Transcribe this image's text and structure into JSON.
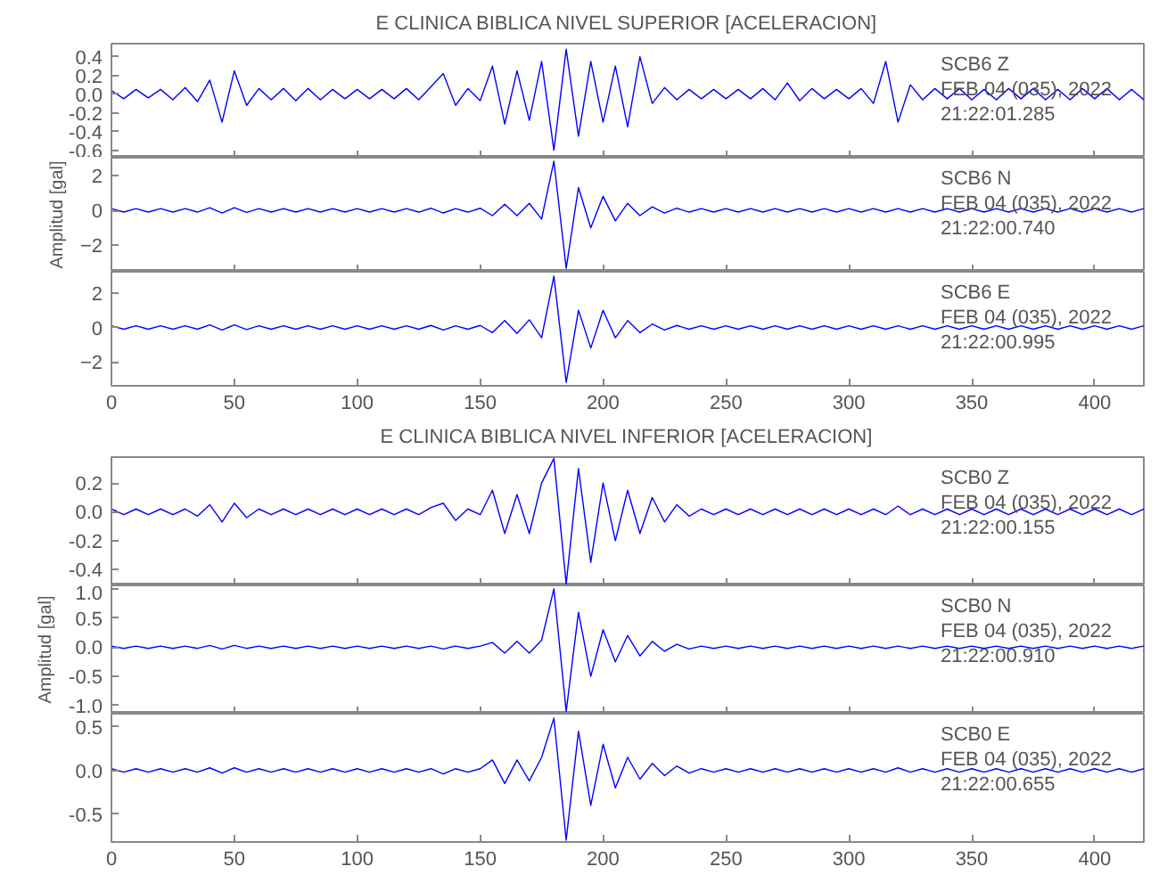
{
  "chart_data": [
    {
      "type": "line",
      "title": "E CLINICA BIBLICA NIVEL SUPERIOR [ACELERACION]",
      "annotations": [
        "SCB6   Z",
        "FEB 04 (035), 2022",
        "21:22:01.285"
      ],
      "tick_labels": "y",
      "x": [
        0,
        5,
        10,
        15,
        20,
        25,
        30,
        35,
        40,
        45,
        50,
        55,
        60,
        65,
        70,
        75,
        80,
        85,
        90,
        95,
        100,
        105,
        110,
        115,
        120,
        125,
        130,
        135,
        140,
        145,
        150,
        155,
        160,
        165,
        170,
        175,
        180,
        185,
        190,
        195,
        200,
        205,
        210,
        215,
        220,
        225,
        230,
        235,
        240,
        245,
        250,
        255,
        260,
        265,
        270,
        275,
        280,
        285,
        290,
        295,
        300,
        305,
        310,
        315,
        320,
        325,
        330,
        335,
        340,
        345,
        350,
        355,
        360,
        365,
        370,
        375,
        380,
        385,
        390,
        395,
        400,
        405,
        410,
        415,
        420
      ],
      "series": [
        {
          "color": "#0000ff",
          "values": [
            0.04,
            -0.05,
            0.05,
            -0.04,
            0.05,
            -0.06,
            0.07,
            -0.08,
            0.15,
            -0.3,
            0.25,
            -0.12,
            0.06,
            -0.06,
            0.06,
            -0.07,
            0.06,
            -0.06,
            0.05,
            -0.05,
            0.05,
            -0.05,
            0.05,
            -0.05,
            0.06,
            -0.06,
            0.08,
            0.22,
            -0.12,
            0.06,
            -0.07,
            0.3,
            -0.32,
            0.25,
            -0.28,
            0.35,
            -0.6,
            0.48,
            -0.45,
            0.35,
            -0.3,
            0.3,
            -0.35,
            0.4,
            -0.1,
            0.07,
            -0.06,
            0.05,
            -0.05,
            0.05,
            -0.05,
            0.05,
            -0.05,
            0.06,
            -0.06,
            0.12,
            -0.07,
            0.06,
            -0.05,
            0.05,
            -0.05,
            0.06,
            -0.1,
            0.35,
            -0.3,
            0.1,
            -0.06,
            0.06,
            -0.05,
            0.06,
            -0.06,
            0.05,
            -0.06,
            0.06,
            -0.05,
            0.06,
            -0.06,
            0.05,
            -0.06,
            0.06,
            -0.05,
            0.06,
            -0.06,
            0.05,
            -0.06
          ]
        }
      ],
      "xlim": [
        0,
        420
      ],
      "ylim": [
        -0.68,
        0.54
      ],
      "xticks": [
        0,
        50,
        100,
        150,
        200,
        250,
        300,
        350,
        400
      ],
      "yticks": [
        {
          "value": -0.6,
          "label": "-0.6"
        },
        {
          "value": -0.4,
          "label": "-0.4"
        },
        {
          "value": -0.2,
          "label": "-0.2"
        },
        {
          "value": 0,
          "label": "0.0"
        },
        {
          "value": 0.2,
          "label": "0.2"
        },
        {
          "value": 0.4,
          "label": "0.4"
        }
      ]
    },
    {
      "type": "line",
      "ylabel": "Amplitud [gal]",
      "annotations": [
        "SCB6   N",
        "FEB 04 (035), 2022",
        "21:22:00.740"
      ],
      "tick_labels": "y",
      "x": [
        0,
        5,
        10,
        15,
        20,
        25,
        30,
        35,
        40,
        45,
        50,
        55,
        60,
        65,
        70,
        75,
        80,
        85,
        90,
        95,
        100,
        105,
        110,
        115,
        120,
        125,
        130,
        135,
        140,
        145,
        150,
        155,
        160,
        165,
        170,
        175,
        180,
        185,
        190,
        195,
        200,
        205,
        210,
        215,
        220,
        225,
        230,
        235,
        240,
        245,
        250,
        255,
        260,
        265,
        270,
        275,
        280,
        285,
        290,
        295,
        300,
        305,
        310,
        315,
        320,
        325,
        330,
        335,
        340,
        345,
        350,
        355,
        360,
        365,
        370,
        375,
        380,
        385,
        390,
        395,
        400,
        405,
        410,
        415,
        420
      ],
      "series": [
        {
          "color": "#0000ff",
          "values": [
            0.1,
            -0.1,
            0.1,
            -0.1,
            0.1,
            -0.1,
            0.1,
            -0.1,
            0.15,
            -0.15,
            0.15,
            -0.12,
            0.1,
            -0.1,
            0.1,
            -0.1,
            0.1,
            -0.1,
            0.1,
            -0.1,
            0.1,
            -0.1,
            0.1,
            -0.1,
            0.1,
            -0.1,
            0.12,
            -0.15,
            0.1,
            -0.1,
            0.12,
            -0.3,
            0.35,
            -0.3,
            0.4,
            -0.5,
            2.8,
            -3.3,
            1.3,
            -1.0,
            0.8,
            -0.6,
            0.4,
            -0.3,
            0.2,
            -0.15,
            0.12,
            -0.1,
            0.1,
            -0.1,
            0.1,
            -0.1,
            0.1,
            -0.1,
            0.1,
            -0.1,
            0.1,
            -0.1,
            0.1,
            -0.1,
            0.1,
            -0.1,
            0.1,
            -0.1,
            0.1,
            -0.1,
            0.1,
            -0.1,
            0.1,
            -0.1,
            0.1,
            -0.1,
            0.1,
            -0.1,
            0.1,
            -0.1,
            0.1,
            -0.1,
            0.1,
            -0.1,
            0.1,
            -0.1,
            0.1,
            -0.1,
            0.1
          ]
        }
      ],
      "xlim": [
        0,
        420
      ],
      "ylim": [
        -3.5,
        3
      ],
      "xticks": [
        0,
        50,
        100,
        150,
        200,
        250,
        300,
        350,
        400
      ],
      "yticks": [
        -2,
        0,
        2
      ]
    },
    {
      "type": "line",
      "annotations": [
        "SCB6   E",
        "FEB 04 (035), 2022",
        "21:22:00.995"
      ],
      "x": [
        0,
        5,
        10,
        15,
        20,
        25,
        30,
        35,
        40,
        45,
        50,
        55,
        60,
        65,
        70,
        75,
        80,
        85,
        90,
        95,
        100,
        105,
        110,
        115,
        120,
        125,
        130,
        135,
        140,
        145,
        150,
        155,
        160,
        165,
        170,
        175,
        180,
        185,
        190,
        195,
        200,
        205,
        210,
        215,
        220,
        225,
        230,
        235,
        240,
        245,
        250,
        255,
        260,
        265,
        270,
        275,
        280,
        285,
        290,
        295,
        300,
        305,
        310,
        315,
        320,
        325,
        330,
        335,
        340,
        345,
        350,
        355,
        360,
        365,
        370,
        375,
        380,
        385,
        390,
        395,
        400,
        405,
        410,
        415,
        420
      ],
      "series": [
        {
          "color": "#0000ff",
          "values": [
            0.1,
            -0.1,
            0.1,
            -0.1,
            0.1,
            -0.1,
            0.1,
            -0.1,
            0.15,
            -0.15,
            0.15,
            -0.12,
            0.1,
            -0.1,
            0.1,
            -0.1,
            0.1,
            -0.1,
            0.1,
            -0.1,
            0.1,
            -0.1,
            0.1,
            -0.1,
            0.1,
            -0.1,
            0.12,
            -0.15,
            0.1,
            -0.1,
            0.12,
            -0.3,
            0.4,
            -0.35,
            0.45,
            -0.6,
            3.0,
            -3.2,
            1.0,
            -1.2,
            1.0,
            -0.6,
            0.4,
            -0.3,
            0.2,
            -0.15,
            0.12,
            -0.1,
            0.1,
            -0.1,
            0.1,
            -0.1,
            0.1,
            -0.1,
            0.1,
            -0.1,
            0.1,
            -0.1,
            0.1,
            -0.1,
            0.1,
            -0.1,
            0.1,
            -0.1,
            0.1,
            -0.1,
            0.1,
            -0.1,
            0.1,
            -0.1,
            0.1,
            -0.1,
            0.1,
            -0.1,
            0.1,
            -0.1,
            0.1,
            -0.1,
            0.1,
            -0.1,
            0.1,
            -0.1,
            0.1,
            -0.1,
            0.1
          ]
        }
      ],
      "xlim": [
        0,
        420
      ],
      "ylim": [
        -3.4,
        3.25
      ],
      "xticks": [
        0,
        50,
        100,
        150,
        200,
        250,
        300,
        350,
        400
      ],
      "yticks": [
        -2,
        0,
        2
      ]
    },
    {
      "type": "line",
      "title": "E CLINICA BIBLICA NIVEL INFERIOR [ACELERACION]",
      "annotations": [
        "SCB0   Z",
        "FEB 04 (035), 2022",
        "21:22:00.155"
      ],
      "tick_labels": "y",
      "x": [
        0,
        5,
        10,
        15,
        20,
        25,
        30,
        35,
        40,
        45,
        50,
        55,
        60,
        65,
        70,
        75,
        80,
        85,
        90,
        95,
        100,
        105,
        110,
        115,
        120,
        125,
        130,
        135,
        140,
        145,
        150,
        155,
        160,
        165,
        170,
        175,
        180,
        185,
        190,
        195,
        200,
        205,
        210,
        215,
        220,
        225,
        230,
        235,
        240,
        245,
        250,
        255,
        260,
        265,
        270,
        275,
        280,
        285,
        290,
        295,
        300,
        305,
        310,
        315,
        320,
        325,
        330,
        335,
        340,
        345,
        350,
        355,
        360,
        365,
        370,
        375,
        380,
        385,
        390,
        395,
        400,
        405,
        410,
        415,
        420
      ],
      "series": [
        {
          "color": "#0000ff",
          "values": [
            0.02,
            -0.02,
            0.02,
            -0.02,
            0.02,
            -0.02,
            0.02,
            -0.03,
            0.05,
            -0.07,
            0.06,
            -0.04,
            0.02,
            -0.02,
            0.02,
            -0.02,
            0.02,
            -0.02,
            0.02,
            -0.02,
            0.02,
            -0.02,
            0.02,
            -0.02,
            0.02,
            -0.02,
            0.03,
            0.06,
            -0.06,
            0.02,
            -0.02,
            0.15,
            -0.15,
            0.12,
            -0.15,
            0.2,
            0.37,
            -0.5,
            0.3,
            -0.35,
            0.2,
            -0.2,
            0.15,
            -0.15,
            0.1,
            -0.07,
            0.05,
            -0.03,
            0.02,
            -0.02,
            0.02,
            -0.02,
            0.02,
            -0.02,
            0.02,
            -0.02,
            0.02,
            -0.02,
            0.02,
            -0.02,
            0.02,
            -0.02,
            0.02,
            -0.02,
            0.04,
            -0.02,
            0.02,
            -0.02,
            0.02,
            -0.02,
            0.02,
            -0.02,
            0.02,
            -0.02,
            0.02,
            -0.02,
            0.02,
            -0.02,
            0.02,
            -0.02,
            0.02,
            -0.02,
            0.02,
            -0.02,
            0.02
          ]
        }
      ],
      "xlim": [
        0,
        420
      ],
      "ylim": [
        -0.51,
        0.38
      ],
      "xticks": [
        0,
        50,
        100,
        150,
        200,
        250,
        300,
        350,
        400
      ],
      "yticks": [
        {
          "value": -0.4,
          "label": "-0.4"
        },
        {
          "value": -0.2,
          "label": "-0.2"
        },
        {
          "value": 0,
          "label": "0.0"
        },
        {
          "value": 0.2,
          "label": "0.2"
        }
      ]
    },
    {
      "type": "line",
      "ylabel": "Amplitud [gal]",
      "annotations": [
        "SCB0   N",
        "FEB 04 (035), 2022",
        "21:22:00.910"
      ],
      "tick_labels": "y",
      "x": [
        0,
        5,
        10,
        15,
        20,
        25,
        30,
        35,
        40,
        45,
        50,
        55,
        60,
        65,
        70,
        75,
        80,
        85,
        90,
        95,
        100,
        105,
        110,
        115,
        120,
        125,
        130,
        135,
        140,
        145,
        150,
        155,
        160,
        165,
        170,
        175,
        180,
        185,
        190,
        195,
        200,
        205,
        210,
        215,
        220,
        225,
        230,
        235,
        240,
        245,
        250,
        255,
        260,
        265,
        270,
        275,
        280,
        285,
        290,
        295,
        300,
        305,
        310,
        315,
        320,
        325,
        330,
        335,
        340,
        345,
        350,
        355,
        360,
        365,
        370,
        375,
        380,
        385,
        390,
        395,
        400,
        405,
        410,
        415,
        420
      ],
      "series": [
        {
          "color": "#0000ff",
          "values": [
            0.02,
            -0.02,
            0.02,
            -0.02,
            0.02,
            -0.02,
            0.02,
            -0.02,
            0.03,
            -0.03,
            0.03,
            -0.02,
            0.02,
            -0.02,
            0.02,
            -0.02,
            0.02,
            -0.02,
            0.02,
            -0.02,
            0.02,
            -0.02,
            0.02,
            -0.02,
            0.02,
            -0.02,
            0.02,
            -0.03,
            0.02,
            -0.02,
            0.02,
            0.08,
            -0.1,
            0.1,
            -0.1,
            0.12,
            1.0,
            -1.1,
            0.6,
            -0.5,
            0.3,
            -0.25,
            0.2,
            -0.15,
            0.1,
            -0.07,
            0.05,
            -0.03,
            0.02,
            -0.02,
            0.02,
            -0.02,
            0.02,
            -0.02,
            0.02,
            -0.02,
            0.02,
            -0.02,
            0.02,
            -0.02,
            0.02,
            -0.02,
            0.02,
            -0.02,
            0.02,
            -0.02,
            0.02,
            -0.02,
            0.02,
            -0.02,
            0.02,
            -0.02,
            0.02,
            -0.02,
            0.02,
            -0.02,
            0.02,
            -0.02,
            0.02,
            -0.02,
            0.02,
            -0.02,
            0.02,
            -0.02,
            0.02
          ]
        }
      ],
      "xlim": [
        0,
        420
      ],
      "ylim": [
        -1.14,
        1.06
      ],
      "xticks": [
        0,
        50,
        100,
        150,
        200,
        250,
        300,
        350,
        400
      ],
      "yticks": [
        {
          "value": -1,
          "label": "-1.0"
        },
        {
          "value": -0.5,
          "label": "-0.5"
        },
        {
          "value": 0,
          "label": "0.0"
        },
        {
          "value": 0.5,
          "label": "0.5"
        },
        {
          "value": 1,
          "label": "1.0"
        }
      ]
    },
    {
      "type": "line",
      "annotations": [
        "SCB0   E",
        "FEB 04 (035), 2022",
        "21:22:00.655"
      ],
      "x": [
        0,
        5,
        10,
        15,
        20,
        25,
        30,
        35,
        40,
        45,
        50,
        55,
        60,
        65,
        70,
        75,
        80,
        85,
        90,
        95,
        100,
        105,
        110,
        115,
        120,
        125,
        130,
        135,
        140,
        145,
        150,
        155,
        160,
        165,
        170,
        175,
        180,
        185,
        190,
        195,
        200,
        205,
        210,
        215,
        220,
        225,
        230,
        235,
        240,
        245,
        250,
        255,
        260,
        265,
        270,
        275,
        280,
        285,
        290,
        295,
        300,
        305,
        310,
        315,
        320,
        325,
        330,
        335,
        340,
        345,
        350,
        355,
        360,
        365,
        370,
        375,
        380,
        385,
        390,
        395,
        400,
        405,
        410,
        415,
        420
      ],
      "series": [
        {
          "color": "#0000ff",
          "values": [
            0.02,
            -0.02,
            0.02,
            -0.02,
            0.02,
            -0.02,
            0.02,
            -0.02,
            0.03,
            -0.03,
            0.03,
            -0.02,
            0.02,
            -0.02,
            0.02,
            -0.02,
            0.02,
            -0.02,
            0.02,
            -0.02,
            0.02,
            -0.02,
            0.02,
            -0.02,
            0.02,
            -0.02,
            0.02,
            -0.04,
            0.02,
            -0.02,
            0.02,
            0.12,
            -0.15,
            0.12,
            -0.12,
            0.15,
            0.6,
            -0.8,
            0.45,
            -0.4,
            0.3,
            -0.2,
            0.15,
            -0.1,
            0.08,
            -0.06,
            0.05,
            -0.03,
            0.02,
            -0.02,
            0.02,
            -0.02,
            0.02,
            -0.02,
            0.02,
            -0.02,
            0.02,
            -0.02,
            0.02,
            -0.02,
            0.02,
            -0.02,
            0.02,
            -0.02,
            0.03,
            -0.02,
            0.02,
            -0.02,
            0.02,
            -0.02,
            0.02,
            -0.02,
            0.02,
            -0.02,
            0.02,
            -0.02,
            0.02,
            -0.02,
            0.02,
            -0.02,
            0.02,
            -0.02,
            0.02,
            -0.02,
            0.02
          ]
        }
      ],
      "xlim": [
        0,
        420
      ],
      "ylim": [
        -0.82,
        0.65
      ],
      "xticks": [
        0,
        50,
        100,
        150,
        200,
        250,
        300,
        350,
        400
      ],
      "yticks": [
        {
          "value": -0.5,
          "label": "-0.5"
        },
        {
          "value": 0,
          "label": "0.0"
        },
        {
          "value": 0.5,
          "label": "0.5"
        }
      ]
    }
  ]
}
